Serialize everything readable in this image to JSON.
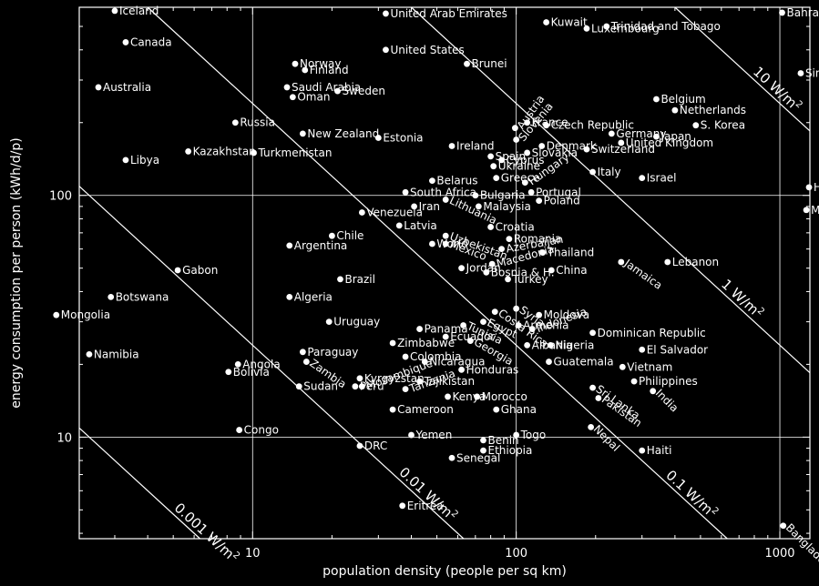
{
  "chart_data": {
    "type": "scatter",
    "xlabel": "population density (people per sq km)",
    "ylabel": "energy consumption per person (kWh/d/p)",
    "x_scale": "log",
    "y_scale": "log",
    "xlim": [
      2.2,
      1300
    ],
    "ylim": [
      3.8,
      600
    ],
    "grid": true,
    "x_ticks": [
      10,
      100,
      1000
    ],
    "x_tick_labels": [
      "10",
      "100",
      "1000"
    ],
    "y_ticks": [
      10,
      100
    ],
    "y_tick_labels": [
      "10",
      "100"
    ],
    "power_lines": [
      {
        "label": "0.001 W/m",
        "sup": "2",
        "value": 0.001
      },
      {
        "label": "0.01 W/m",
        "sup": "2",
        "value": 0.01
      },
      {
        "label": "0.1 W/m",
        "sup": "2",
        "value": 0.1
      },
      {
        "label": "1 W/m",
        "sup": "2",
        "value": 1
      },
      {
        "label": "10 W/m",
        "sup": "2",
        "value": 10
      }
    ],
    "points": [
      {
        "name": "Iceland",
        "x": 3.0,
        "y": 580
      },
      {
        "name": "United Arab Emirates",
        "x": 32,
        "y": 565
      },
      {
        "name": "Canada",
        "x": 3.3,
        "y": 430
      },
      {
        "name": "Kuwait",
        "x": 130,
        "y": 520
      },
      {
        "name": "Trinidad and Tobago",
        "x": 220,
        "y": 500
      },
      {
        "name": "Bahrain",
        "x": 1020,
        "y": 570
      },
      {
        "name": "Luxembourg",
        "x": 185,
        "y": 490
      },
      {
        "name": "Norway",
        "x": 14.5,
        "y": 350
      },
      {
        "name": "Finland",
        "x": 15.8,
        "y": 330
      },
      {
        "name": "United States",
        "x": 32,
        "y": 400
      },
      {
        "name": "Brunei",
        "x": 65,
        "y": 350
      },
      {
        "name": "Australia",
        "x": 2.6,
        "y": 280
      },
      {
        "name": "Saudi Arabia",
        "x": 13.5,
        "y": 280
      },
      {
        "name": "Oman",
        "x": 14.2,
        "y": 255
      },
      {
        "name": "Sweden",
        "x": 21,
        "y": 270
      },
      {
        "name": "Singapore",
        "x": 1200,
        "y": 320
      },
      {
        "name": "Belgium",
        "x": 340,
        "y": 250
      },
      {
        "name": "Netherlands",
        "x": 400,
        "y": 225
      },
      {
        "name": "Russia",
        "x": 8.6,
        "y": 200
      },
      {
        "name": "France",
        "x": 110,
        "y": 200
      },
      {
        "name": "Austria",
        "x": 99,
        "y": 190
      },
      {
        "name": "Czech Republic",
        "x": 130,
        "y": 195
      },
      {
        "name": "New Zealand",
        "x": 15.5,
        "y": 180
      },
      {
        "name": "Estonia",
        "x": 30,
        "y": 173
      },
      {
        "name": "Slovenia",
        "x": 100,
        "y": 170
      },
      {
        "name": "Germany",
        "x": 230,
        "y": 180
      },
      {
        "name": "Japan",
        "x": 340,
        "y": 175
      },
      {
        "name": "S. Korea",
        "x": 480,
        "y": 195
      },
      {
        "name": "Denmark",
        "x": 125,
        "y": 160
      },
      {
        "name": "United Kingdom",
        "x": 250,
        "y": 165
      },
      {
        "name": "Switzerland",
        "x": 185,
        "y": 155
      },
      {
        "name": "Slovakia",
        "x": 110,
        "y": 150
      },
      {
        "name": "Kazakhstan",
        "x": 5.7,
        "y": 152
      },
      {
        "name": "Turkmenistan",
        "x": 10.1,
        "y": 150
      },
      {
        "name": "Ireland",
        "x": 57,
        "y": 160
      },
      {
        "name": "Spain",
        "x": 80,
        "y": 145
      },
      {
        "name": "Cyprus",
        "x": 88,
        "y": 140
      },
      {
        "name": "Ukraine",
        "x": 82,
        "y": 132
      },
      {
        "name": "Libya",
        "x": 3.3,
        "y": 140
      },
      {
        "name": "Italy",
        "x": 195,
        "y": 125
      },
      {
        "name": "Hungary",
        "x": 108,
        "y": 113
      },
      {
        "name": "Greece",
        "x": 84,
        "y": 118
      },
      {
        "name": "Israel",
        "x": 300,
        "y": 118
      },
      {
        "name": "Hong Kong",
        "x": 1290,
        "y": 108
      },
      {
        "name": "Belarus",
        "x": 48,
        "y": 115
      },
      {
        "name": "South Africa",
        "x": 38,
        "y": 103
      },
      {
        "name": "Bulgaria",
        "x": 70,
        "y": 100
      },
      {
        "name": "Portugal",
        "x": 114,
        "y": 103
      },
      {
        "name": "Poland",
        "x": 122,
        "y": 95
      },
      {
        "name": "Lithuania",
        "x": 54,
        "y": 96
      },
      {
        "name": "Venezuela",
        "x": 26,
        "y": 85
      },
      {
        "name": "Iran",
        "x": 41,
        "y": 90
      },
      {
        "name": "Malaysia",
        "x": 72,
        "y": 90
      },
      {
        "name": "Malta",
        "x": 1260,
        "y": 87
      },
      {
        "name": "Latvia",
        "x": 36,
        "y": 75
      },
      {
        "name": "Croatia",
        "x": 80,
        "y": 74
      },
      {
        "name": "Uzbekistan",
        "x": 54,
        "y": 68
      },
      {
        "name": "World",
        "x": 48,
        "y": 63
      },
      {
        "name": "Mexico",
        "x": 54,
        "y": 63
      },
      {
        "name": "Chile",
        "x": 20,
        "y": 68
      },
      {
        "name": "Romania",
        "x": 94,
        "y": 66
      },
      {
        "name": "Argentina",
        "x": 13.8,
        "y": 62
      },
      {
        "name": "Azerbaijan",
        "x": 88,
        "y": 60
      },
      {
        "name": "Thailand",
        "x": 126,
        "y": 58
      },
      {
        "name": "Macedonia",
        "x": 81,
        "y": 52
      },
      {
        "name": "Jordan",
        "x": 62,
        "y": 50
      },
      {
        "name": "Bosnia & H.",
        "x": 77,
        "y": 48
      },
      {
        "name": "Jamaica",
        "x": 250,
        "y": 53
      },
      {
        "name": "Lebanon",
        "x": 375,
        "y": 53
      },
      {
        "name": "Gabon",
        "x": 5.2,
        "y": 49
      },
      {
        "name": "China",
        "x": 136,
        "y": 49
      },
      {
        "name": "Turkey",
        "x": 93,
        "y": 45
      },
      {
        "name": "Brazil",
        "x": 21.5,
        "y": 45
      },
      {
        "name": "Botswana",
        "x": 2.9,
        "y": 38
      },
      {
        "name": "Algeria",
        "x": 13.8,
        "y": 38
      },
      {
        "name": "Syria",
        "x": 100,
        "y": 34
      },
      {
        "name": "Costa Rica",
        "x": 83,
        "y": 33
      },
      {
        "name": "Moldova",
        "x": 122,
        "y": 32
      },
      {
        "name": "Mongolia",
        "x": 1.8,
        "y": 32
      },
      {
        "name": "Uruguay",
        "x": 19.5,
        "y": 30
      },
      {
        "name": "Egypt",
        "x": 75,
        "y": 30
      },
      {
        "name": "Tunisia",
        "x": 63,
        "y": 29
      },
      {
        "name": "Armenia",
        "x": 102,
        "y": 29
      },
      {
        "name": "Panama",
        "x": 43,
        "y": 28
      },
      {
        "name": "Indonesia",
        "x": 115,
        "y": 28
      },
      {
        "name": "Dominican Republic",
        "x": 195,
        "y": 27
      },
      {
        "name": "Ecuador",
        "x": 54,
        "y": 26
      },
      {
        "name": "Georgia",
        "x": 67,
        "y": 25
      },
      {
        "name": "Zimbabwe",
        "x": 34,
        "y": 24.5
      },
      {
        "name": "Albania",
        "x": 110,
        "y": 24
      },
      {
        "name": "Nigeria",
        "x": 135,
        "y": 24
      },
      {
        "name": "Paraguay",
        "x": 15.5,
        "y": 22.5
      },
      {
        "name": "El Salvador",
        "x": 300,
        "y": 23
      },
      {
        "name": "Namibia",
        "x": 2.4,
        "y": 22
      },
      {
        "name": "Zambia",
        "x": 16,
        "y": 20.5
      },
      {
        "name": "Colombia",
        "x": 38,
        "y": 21.5
      },
      {
        "name": "Nicaragua",
        "x": 45,
        "y": 20.5
      },
      {
        "name": "Guatemala",
        "x": 133,
        "y": 20.5
      },
      {
        "name": "Angola",
        "x": 8.8,
        "y": 20
      },
      {
        "name": "Vietnam",
        "x": 253,
        "y": 19.5
      },
      {
        "name": "Honduras",
        "x": 62,
        "y": 19
      },
      {
        "name": "Bolivia",
        "x": 8.1,
        "y": 18.6
      },
      {
        "name": "Kyrgyzstan",
        "x": 25.5,
        "y": 17.5
      },
      {
        "name": "Tajikistan",
        "x": 43,
        "y": 17
      },
      {
        "name": "Philippines",
        "x": 280,
        "y": 17
      },
      {
        "name": "Sudan",
        "x": 15,
        "y": 16.2
      },
      {
        "name": "Peru",
        "x": 24.5,
        "y": 16.2
      },
      {
        "name": "Mozambique",
        "x": 26,
        "y": 16.2
      },
      {
        "name": "Tanzania",
        "x": 38,
        "y": 15.8
      },
      {
        "name": "Sri Lanka",
        "x": 195,
        "y": 16
      },
      {
        "name": "India",
        "x": 330,
        "y": 15.5
      },
      {
        "name": "Kenya",
        "x": 55,
        "y": 14.7
      },
      {
        "name": "Morocco",
        "x": 71,
        "y": 14.7
      },
      {
        "name": "Pakistan",
        "x": 205,
        "y": 14.5
      },
      {
        "name": "Cameroon",
        "x": 34,
        "y": 13
      },
      {
        "name": "Ghana",
        "x": 84,
        "y": 13
      },
      {
        "name": "Congo",
        "x": 8.9,
        "y": 10.7
      },
      {
        "name": "Yemen",
        "x": 40,
        "y": 10.2
      },
      {
        "name": "Togo",
        "x": 100,
        "y": 10.2
      },
      {
        "name": "Nepal",
        "x": 192,
        "y": 11
      },
      {
        "name": "Benin",
        "x": 75,
        "y": 9.7
      },
      {
        "name": "DRC",
        "x": 25.5,
        "y": 9.2
      },
      {
        "name": "Ethiopia",
        "x": 75,
        "y": 8.8
      },
      {
        "name": "Haiti",
        "x": 300,
        "y": 8.8
      },
      {
        "name": "Senegal",
        "x": 57,
        "y": 8.2
      },
      {
        "name": "Bangladesh",
        "x": 1030,
        "y": 4.3
      },
      {
        "name": "Eritrea",
        "x": 37,
        "y": 5.2
      }
    ]
  }
}
